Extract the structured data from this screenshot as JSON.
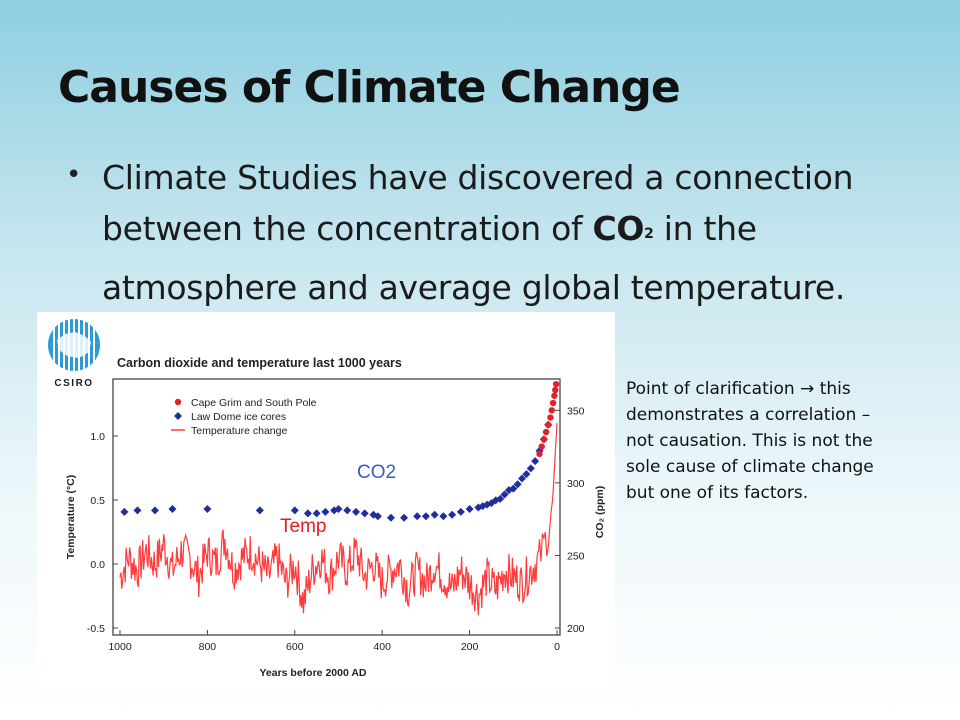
{
  "slide": {
    "title": "Causes of Climate Change",
    "bullet": {
      "text_before": "Climate Studies have discovered a connection between the concentration of ",
      "co2_main": "CO",
      "co2_sub": "2",
      "text_after": " in the atmosphere and average global temperature."
    },
    "note": "Point of clarification → this demonstrates a correlation – not causation.  This is not the sole cause of climate change but one of its factors."
  },
  "logo": {
    "text": "CSIRO"
  },
  "chart_data": {
    "type": "scatter",
    "title": "Carbon dioxide and temperature last 1000 years",
    "xlabel": "Years before 2000 AD",
    "ylabel_left": "Temperature (°C)",
    "ylabel_right": "CO₂ (ppm)",
    "xlim": [
      1000,
      0
    ],
    "ylim_left": [
      -0.5,
      1.5
    ],
    "ylim_right": [
      200,
      375
    ],
    "x_ticks": [
      "1000",
      "800",
      "600",
      "400",
      "200",
      "0"
    ],
    "y_left_ticks": [
      "1.0",
      "0.5",
      "0.0",
      "-0.5"
    ],
    "y_left_tick_values": [
      1.0,
      0.5,
      0.0,
      -0.5
    ],
    "y_right_ticks": [
      "350",
      "300",
      "250",
      "200"
    ],
    "y_right_tick_values": [
      350,
      300,
      250,
      200
    ],
    "legend": [
      {
        "label": "Cape Grim and South Pole",
        "color": "#e0202a",
        "marker": "circle"
      },
      {
        "label": "Law Dome ice cores",
        "color": "#1f2d9e",
        "marker": "diamond"
      },
      {
        "label": "Temperature change",
        "color": "#ff3b3b",
        "marker": "line"
      }
    ],
    "legend_position": "top-left",
    "annotations": [
      {
        "text": "CO2",
        "color": "#3b59c8"
      },
      {
        "text": "Temp",
        "color": "#e02020"
      }
    ],
    "series": [
      {
        "name": "Law Dome ice cores",
        "color": "#1f2d9e",
        "x": [
          990,
          960,
          920,
          880,
          800,
          680,
          600,
          570,
          550,
          530,
          510,
          500,
          480,
          460,
          440,
          420,
          410,
          380,
          350,
          320,
          300,
          280,
          260,
          240,
          220,
          200,
          180,
          170,
          160,
          150,
          140,
          130,
          120,
          110,
          100,
          90,
          80,
          70,
          60,
          50,
          40,
          30,
          20
        ],
        "y": [
          280,
          281,
          281,
          282,
          282,
          281,
          281,
          279,
          279,
          280,
          281,
          282,
          281,
          280,
          279,
          278,
          277,
          276,
          276,
          277,
          277,
          278,
          277,
          278,
          280,
          282,
          283,
          284,
          285,
          286,
          288,
          289,
          292,
          295,
          296,
          299,
          303,
          306,
          310,
          315,
          322,
          330,
          340
        ]
      },
      {
        "name": "Cape Grim and South Pole",
        "color": "#e0202a",
        "x": [
          40,
          35,
          30,
          25,
          20,
          15,
          12,
          9,
          6,
          4,
          2
        ],
        "y": [
          320,
          325,
          330,
          335,
          340,
          345,
          350,
          355,
          360,
          364,
          368
        ]
      },
      {
        "name": "Temperature change",
        "color": "#ff3b3b",
        "x": [
          1000,
          980,
          960,
          940,
          920,
          900,
          880,
          860,
          840,
          820,
          800,
          780,
          760,
          740,
          720,
          700,
          680,
          660,
          640,
          620,
          600,
          580,
          560,
          540,
          520,
          500,
          480,
          460,
          440,
          420,
          400,
          380,
          360,
          340,
          320,
          300,
          280,
          260,
          240,
          220,
          200,
          180,
          160,
          140,
          120,
          100,
          80,
          60,
          40,
          30,
          20,
          10,
          5,
          0
        ],
        "y": [
          -0.1,
          0.05,
          -0.05,
          0.1,
          0.0,
          0.15,
          -0.05,
          0.1,
          0.05,
          -0.1,
          0.1,
          0.0,
          0.2,
          -0.05,
          0.05,
          0.1,
          0.0,
          -0.1,
          0.05,
          -0.15,
          0.0,
          -0.3,
          -0.05,
          0.05,
          -0.1,
          0.05,
          -0.05,
          0.1,
          -0.1,
          0.0,
          -0.15,
          -0.05,
          0.0,
          -0.2,
          -0.05,
          -0.15,
          0.0,
          -0.1,
          -0.2,
          -0.05,
          -0.15,
          -0.25,
          -0.1,
          -0.2,
          -0.05,
          -0.1,
          -0.15,
          -0.05,
          0.05,
          0.15,
          0.25,
          0.5,
          0.8,
          1.1
        ]
      }
    ]
  }
}
